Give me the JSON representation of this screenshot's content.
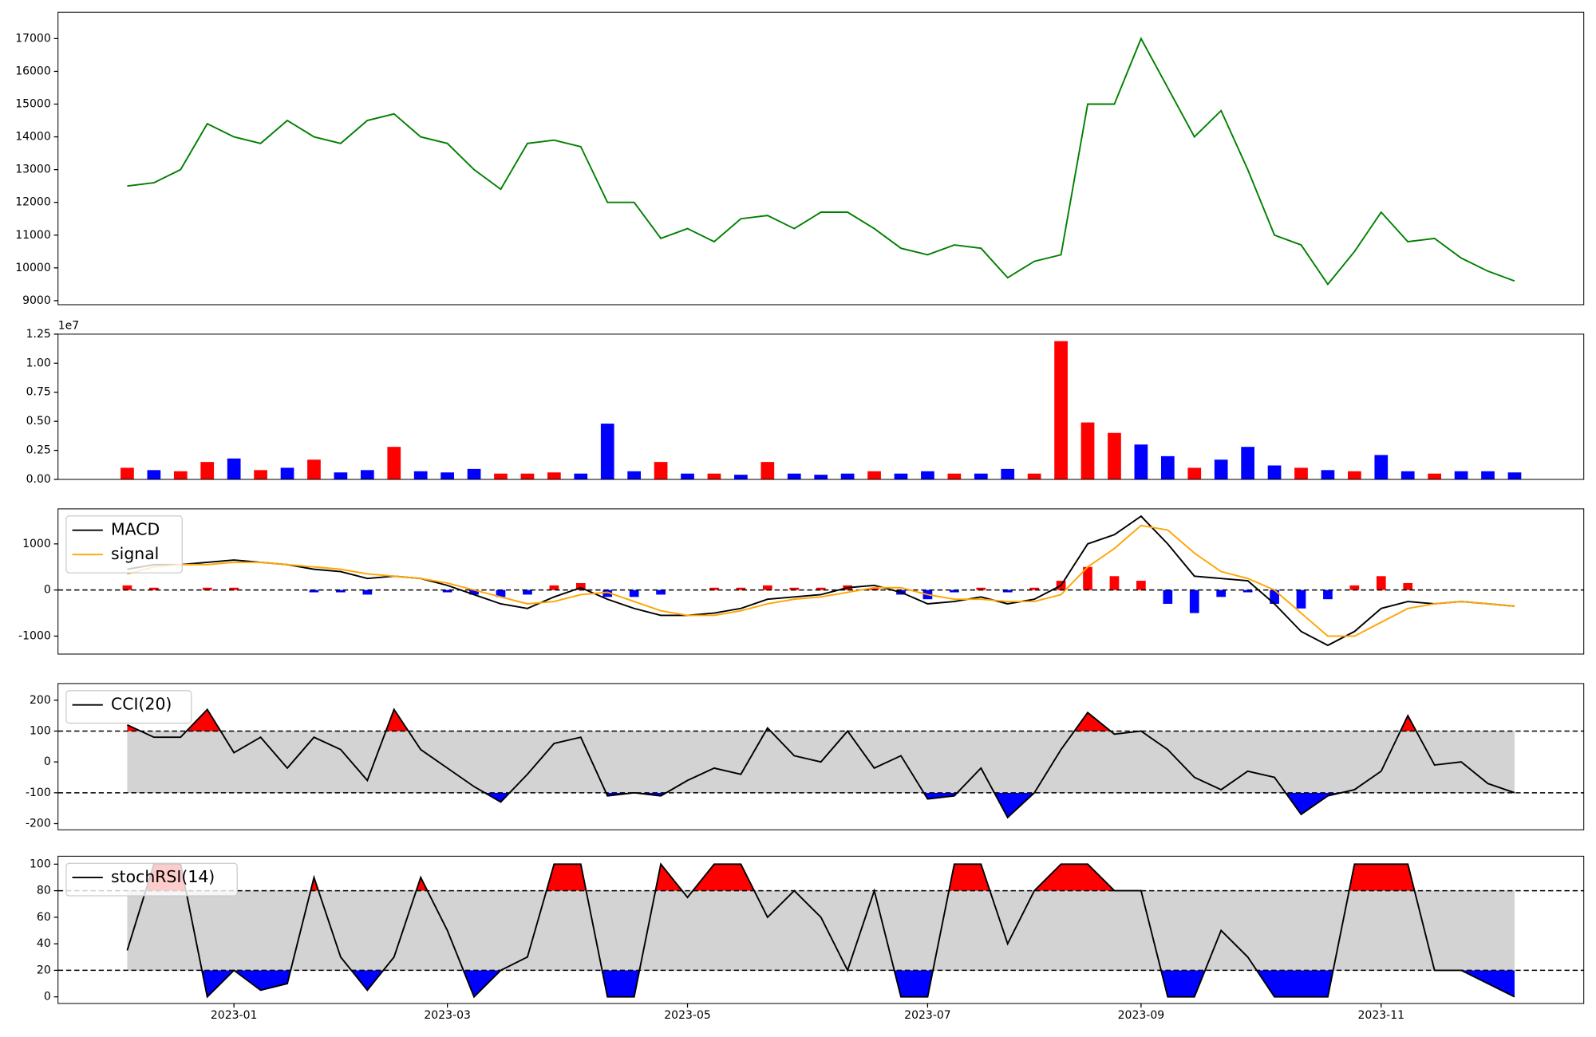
{
  "chart_data": [
    {
      "type": "line",
      "color": "green",
      "values": [
        12500,
        12600,
        13000,
        14400,
        14000,
        13800,
        14500,
        14000,
        13800,
        14500,
        14700,
        14000,
        13800,
        13000,
        12400,
        13800,
        13900,
        13700,
        12000,
        12000,
        10900,
        11200,
        10800,
        11500,
        11600,
        11200,
        11700,
        11700,
        11200,
        10600,
        10400,
        10700,
        10600,
        9700,
        10200,
        10400,
        15000,
        15000,
        17000,
        15500,
        14000,
        14800,
        13000,
        11000,
        10700,
        9500,
        10500,
        11700,
        10800,
        10900,
        10300,
        9900,
        9600
      ],
      "ylim": [
        8876,
        17806
      ],
      "yticks": [
        9000,
        10000,
        11000,
        12000,
        13000,
        14000,
        15000,
        16000,
        17000
      ]
    },
    {
      "type": "bar",
      "offset_label": "1e7",
      "values": [
        0.1,
        0.08,
        0.07,
        0.15,
        0.18,
        0.08,
        0.1,
        0.17,
        0.06,
        0.08,
        0.28,
        0.07,
        0.06,
        0.09,
        0.05,
        0.05,
        0.06,
        0.05,
        0.48,
        0.07,
        0.15,
        0.05,
        0.05,
        0.04,
        0.15,
        0.05,
        0.04,
        0.05,
        0.07,
        0.05,
        0.07,
        0.05,
        0.05,
        0.09,
        0.05,
        1.19,
        0.49,
        0.4,
        0.3,
        0.2,
        0.1,
        0.17,
        0.28,
        0.12,
        0.1,
        0.08,
        0.07,
        0.21,
        0.07,
        0.05,
        0.07,
        0.07,
        0.06
      ],
      "colors": [
        "red",
        "blue",
        "red",
        "red",
        "blue",
        "red",
        "blue",
        "red",
        "blue",
        "blue",
        "red",
        "blue",
        "blue",
        "blue",
        "red",
        "red",
        "red",
        "blue",
        "blue",
        "blue",
        "red",
        "blue",
        "red",
        "blue",
        "red",
        "blue",
        "blue",
        "blue",
        "red",
        "blue",
        "blue",
        "red",
        "blue",
        "blue",
        "red",
        "red",
        "red",
        "red",
        "blue",
        "blue",
        "red",
        "blue",
        "blue",
        "blue",
        "red",
        "blue",
        "red",
        "blue",
        "blue",
        "red",
        "blue",
        "blue",
        "blue"
      ],
      "ylim": [
        0,
        1.25
      ],
      "yticks": [
        {
          "value": 0,
          "label": "0.00"
        },
        {
          "value": 0.25,
          "label": "0.25"
        },
        {
          "value": 0.5,
          "label": "0.50"
        },
        {
          "value": 0.75,
          "label": "0.75"
        },
        {
          "value": 1,
          "label": "1.00"
        },
        {
          "value": 1.25,
          "label": "1.25"
        }
      ]
    },
    {
      "type": "macd",
      "legend": "upper left",
      "hline": 0,
      "series": [
        {
          "name": "MACD",
          "color": "black",
          "values": [
            450,
            550,
            550,
            600,
            650,
            600,
            550,
            450,
            400,
            250,
            300,
            250,
            100,
            -100,
            -300,
            -400,
            -150,
            50,
            -200,
            -400,
            -550,
            -550,
            -500,
            -400,
            -200,
            -150,
            -100,
            50,
            100,
            -50,
            -300,
            -250,
            -150,
            -300,
            -200,
            100,
            1000,
            1200,
            1600,
            1000,
            300,
            250,
            200,
            -300,
            -900,
            -1200,
            -900,
            -400,
            -250,
            -300,
            -250,
            -300,
            -350
          ]
        },
        {
          "name": "signal",
          "color": "orange",
          "values": [
            350,
            500,
            550,
            550,
            600,
            600,
            550,
            500,
            450,
            350,
            300,
            250,
            150,
            0,
            -150,
            -300,
            -250,
            -100,
            -50,
            -250,
            -450,
            -550,
            -550,
            -450,
            -300,
            -200,
            -150,
            -50,
            50,
            50,
            -100,
            -200,
            -200,
            -250,
            -250,
            -100,
            500,
            900,
            1400,
            1300,
            800,
            400,
            250,
            0,
            -500,
            -1000,
            -1000,
            -700,
            -400,
            -300,
            -250,
            -300,
            -350
          ]
        }
      ],
      "histogram": {
        "up_color": "red",
        "down_color": "blue",
        "values": [
          100,
          50,
          0,
          50,
          50,
          0,
          0,
          -50,
          -50,
          -100,
          0,
          0,
          -50,
          -100,
          -150,
          -100,
          100,
          150,
          -150,
          -150,
          -100,
          0,
          50,
          50,
          100,
          50,
          50,
          100,
          50,
          -100,
          -200,
          -50,
          50,
          -50,
          50,
          200,
          500,
          300,
          200,
          -300,
          -500,
          -150,
          -50,
          -300,
          -400,
          -200,
          100,
          300,
          150,
          0,
          0,
          0,
          0
        ]
      },
      "ylim": [
        -1390,
        1760
      ],
      "yticks": [
        -1000,
        0,
        1000
      ]
    },
    {
      "type": "band",
      "legend": "upper left",
      "bands": [
        -100,
        100
      ],
      "upper_color": "red",
      "lower_color": "blue",
      "band_color": "lightgray",
      "series": [
        {
          "name": "CCI(20)",
          "color": "black",
          "values": [
            120,
            80,
            80,
            170,
            30,
            80,
            -20,
            80,
            40,
            -60,
            170,
            40,
            -20,
            -80,
            -130,
            -40,
            60,
            80,
            -110,
            -100,
            -110,
            -60,
            -20,
            -40,
            110,
            20,
            0,
            100,
            -20,
            20,
            -120,
            -110,
            -20,
            -180,
            -100,
            40,
            160,
            90,
            100,
            40,
            -50,
            -90,
            -30,
            -50,
            -170,
            -110,
            -90,
            -30,
            150,
            -10,
            0,
            -70,
            -100
          ]
        }
      ],
      "ylim": [
        -220,
        254
      ],
      "yticks": [
        -200,
        -100,
        0,
        100,
        200
      ]
    },
    {
      "type": "band",
      "legend": "upper left",
      "bands": [
        20,
        80
      ],
      "upper_color": "red",
      "lower_color": "blue",
      "band_color": "lightgray",
      "series": [
        {
          "name": "stochRSI(14)",
          "color": "black",
          "values": [
            35,
            100,
            100,
            0,
            20,
            5,
            10,
            90,
            30,
            5,
            30,
            90,
            50,
            0,
            20,
            30,
            100,
            100,
            0,
            0,
            100,
            75,
            100,
            100,
            60,
            80,
            60,
            20,
            80,
            0,
            0,
            100,
            100,
            40,
            80,
            100,
            100,
            80,
            80,
            0,
            0,
            50,
            30,
            0,
            0,
            0,
            100,
            100,
            100,
            20,
            20,
            10,
            0
          ]
        }
      ],
      "categories": [
        null,
        null,
        null,
        null,
        "2023-01",
        null,
        null,
        null,
        null,
        null,
        null,
        null,
        "2023-03",
        null,
        null,
        null,
        null,
        null,
        null,
        null,
        null,
        "2023-05",
        null,
        null,
        null,
        null,
        null,
        null,
        null,
        null,
        "2023-07",
        null,
        null,
        null,
        null,
        null,
        null,
        null,
        "2023-09",
        null,
        null,
        null,
        null,
        null,
        null,
        null,
        null,
        "2023-11",
        null,
        null,
        null,
        null,
        null
      ],
      "ylim": [
        -5,
        106
      ],
      "yticks": [
        0,
        20,
        40,
        60,
        80,
        100
      ]
    }
  ]
}
